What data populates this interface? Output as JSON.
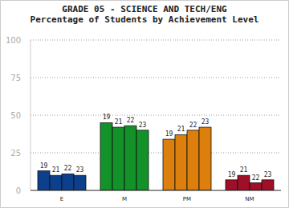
{
  "chart_data": {
    "type": "bar",
    "title": "GRADE 05 - SCIENCE AND TECH/ENG",
    "subtitle": "Percentage of Students by Achievement Level",
    "categories": [
      "E",
      "M",
      "PM",
      "NM"
    ],
    "colors": [
      "#0c3f8c",
      "#14922a",
      "#dc7f0c",
      "#a00e28"
    ],
    "series": [
      {
        "name": "19",
        "values": [
          13,
          45,
          34,
          7
        ]
      },
      {
        "name": "21",
        "values": [
          10,
          42,
          37,
          10
        ]
      },
      {
        "name": "22",
        "values": [
          11,
          43,
          40,
          5
        ]
      },
      {
        "name": "23",
        "values": [
          10,
          40,
          42,
          7
        ]
      }
    ],
    "ylim": [
      0,
      100
    ],
    "yticks": [
      0,
      25,
      50,
      75,
      100
    ],
    "grid": true
  }
}
